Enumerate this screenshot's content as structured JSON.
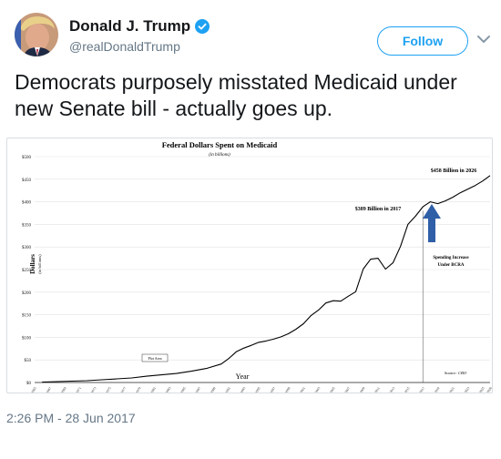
{
  "header": {
    "display_name": "Donald J. Trump",
    "handle": "@realDonaldTrump",
    "follow_label": "Follow",
    "verified_icon": "verified-badge-icon",
    "menu_icon": "chevron-down-icon",
    "accent_color": "#1da1f2"
  },
  "tweet": {
    "text": "Democrats purposely misstated Medicaid under new Senate bill - actually goes up.",
    "timestamp": "2:26 PM - 28 Jun 2017"
  },
  "chart_data": {
    "type": "line",
    "title": "Federal Dollars Spent on Medicaid",
    "subtitle": "(in billions)",
    "ylabel": "Dollars",
    "ylabel_sub": "(in billions)",
    "xlabel": "Year",
    "ylim": [
      0,
      500
    ],
    "yticks": [
      0,
      50,
      100,
      150,
      200,
      250,
      300,
      350,
      400,
      450,
      500
    ],
    "ytick_labels": [
      "$0",
      "$50",
      "$100",
      "$150",
      "$200",
      "$250",
      "$300",
      "$350",
      "$400",
      "$450",
      "$500"
    ],
    "xlim": [
      1965,
      2026
    ],
    "xticks": [
      1965,
      1967,
      1969,
      1971,
      1973,
      1975,
      1977,
      1979,
      1981,
      1983,
      1985,
      1987,
      1989,
      1991,
      1993,
      1995,
      1997,
      1999,
      2001,
      2003,
      2005,
      2007,
      2009,
      2011,
      2013,
      2015,
      2017,
      2019,
      2021,
      2023,
      2025,
      2026
    ],
    "grid": "horizontal",
    "series": [
      {
        "x": [
          1966,
          1968,
          1970,
          1972,
          1974,
          1976,
          1978,
          1980,
          1982,
          1984,
          1986,
          1988,
          1990,
          1991,
          1992,
          1993,
          1994,
          1995,
          1996,
          1997,
          1998,
          1999,
          2000,
          2001,
          2002,
          2003,
          2004,
          2005,
          2006,
          2007,
          2008,
          2009,
          2010,
          2011,
          2012,
          2013,
          2014,
          2015,
          2016,
          2017,
          2018,
          2019,
          2020,
          2021,
          2022,
          2023,
          2024,
          2025,
          2026
        ],
        "values": [
          1,
          2,
          3,
          4,
          6,
          8,
          10,
          14,
          17,
          20,
          25,
          31,
          41,
          53,
          68,
          76,
          82,
          89,
          92,
          96,
          101,
          108,
          118,
          130,
          148,
          160,
          176,
          181,
          180,
          191,
          201,
          251,
          273,
          275,
          251,
          265,
          301,
          350,
          368,
          389,
          400,
          396,
          402,
          410,
          420,
          428,
          436,
          446,
          458
        ],
        "color": "#000000"
      }
    ],
    "annotations": [
      {
        "text": "$458 Billion in 2026",
        "x": 2026,
        "y": 458
      },
      {
        "text": "$389 Billion in 2017",
        "x": 2017,
        "y": 389
      },
      {
        "text": "Spending Increase",
        "x": 2020,
        "y": 280
      },
      {
        "text": "Under BCRA",
        "x": 2020,
        "y": 265
      },
      {
        "text": "Plot Area",
        "x": 1982,
        "y": 50
      },
      {
        "text": "Source: CBO",
        "x": 2022,
        "y": 18
      }
    ],
    "divider_year": 2017,
    "arrow_color": "#2f5fa7"
  }
}
